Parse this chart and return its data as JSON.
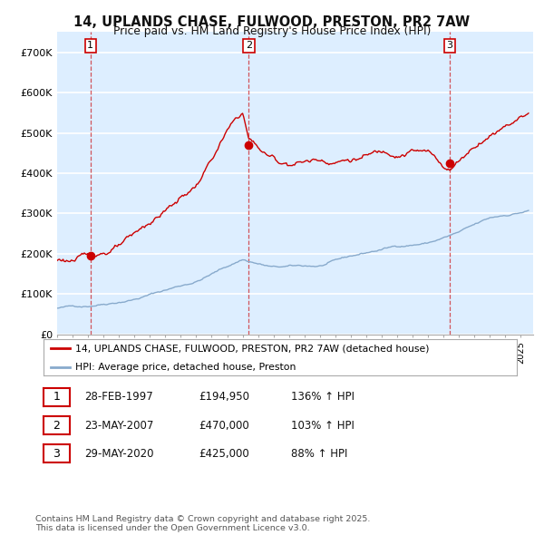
{
  "title_line1": "14, UPLANDS CHASE, FULWOOD, PRESTON, PR2 7AW",
  "title_line2": "Price paid vs. HM Land Registry's House Price Index (HPI)",
  "ylim": [
    0,
    750000
  ],
  "xlim_start": 1995.0,
  "xlim_end": 2025.8,
  "yticks": [
    0,
    100000,
    200000,
    300000,
    400000,
    500000,
    600000,
    700000
  ],
  "ytick_labels": [
    "£0",
    "£100K",
    "£200K",
    "£300K",
    "£400K",
    "£500K",
    "£600K",
    "£700K"
  ],
  "fig_bg_color": "#ffffff",
  "plot_bg_color": "#ddeeff",
  "grid_color": "#ffffff",
  "red_color": "#cc0000",
  "blue_color": "#88aacc",
  "sale_points": [
    {
      "date": 1997.16,
      "price": 194950,
      "label": "1"
    },
    {
      "date": 2007.39,
      "price": 470000,
      "label": "2"
    },
    {
      "date": 2020.41,
      "price": 425000,
      "label": "3"
    }
  ],
  "legend_entries": [
    "14, UPLANDS CHASE, FULWOOD, PRESTON, PR2 7AW (detached house)",
    "HPI: Average price, detached house, Preston"
  ],
  "table_rows": [
    {
      "num": "1",
      "date": "28-FEB-1997",
      "price": "£194,950",
      "hpi": "136% ↑ HPI"
    },
    {
      "num": "2",
      "date": "23-MAY-2007",
      "price": "£470,000",
      "hpi": "103% ↑ HPI"
    },
    {
      "num": "3",
      "date": "29-MAY-2020",
      "price": "£425,000",
      "hpi": "88% ↑ HPI"
    }
  ],
  "footnote": "Contains HM Land Registry data © Crown copyright and database right 2025.\nThis data is licensed under the Open Government Licence v3.0."
}
